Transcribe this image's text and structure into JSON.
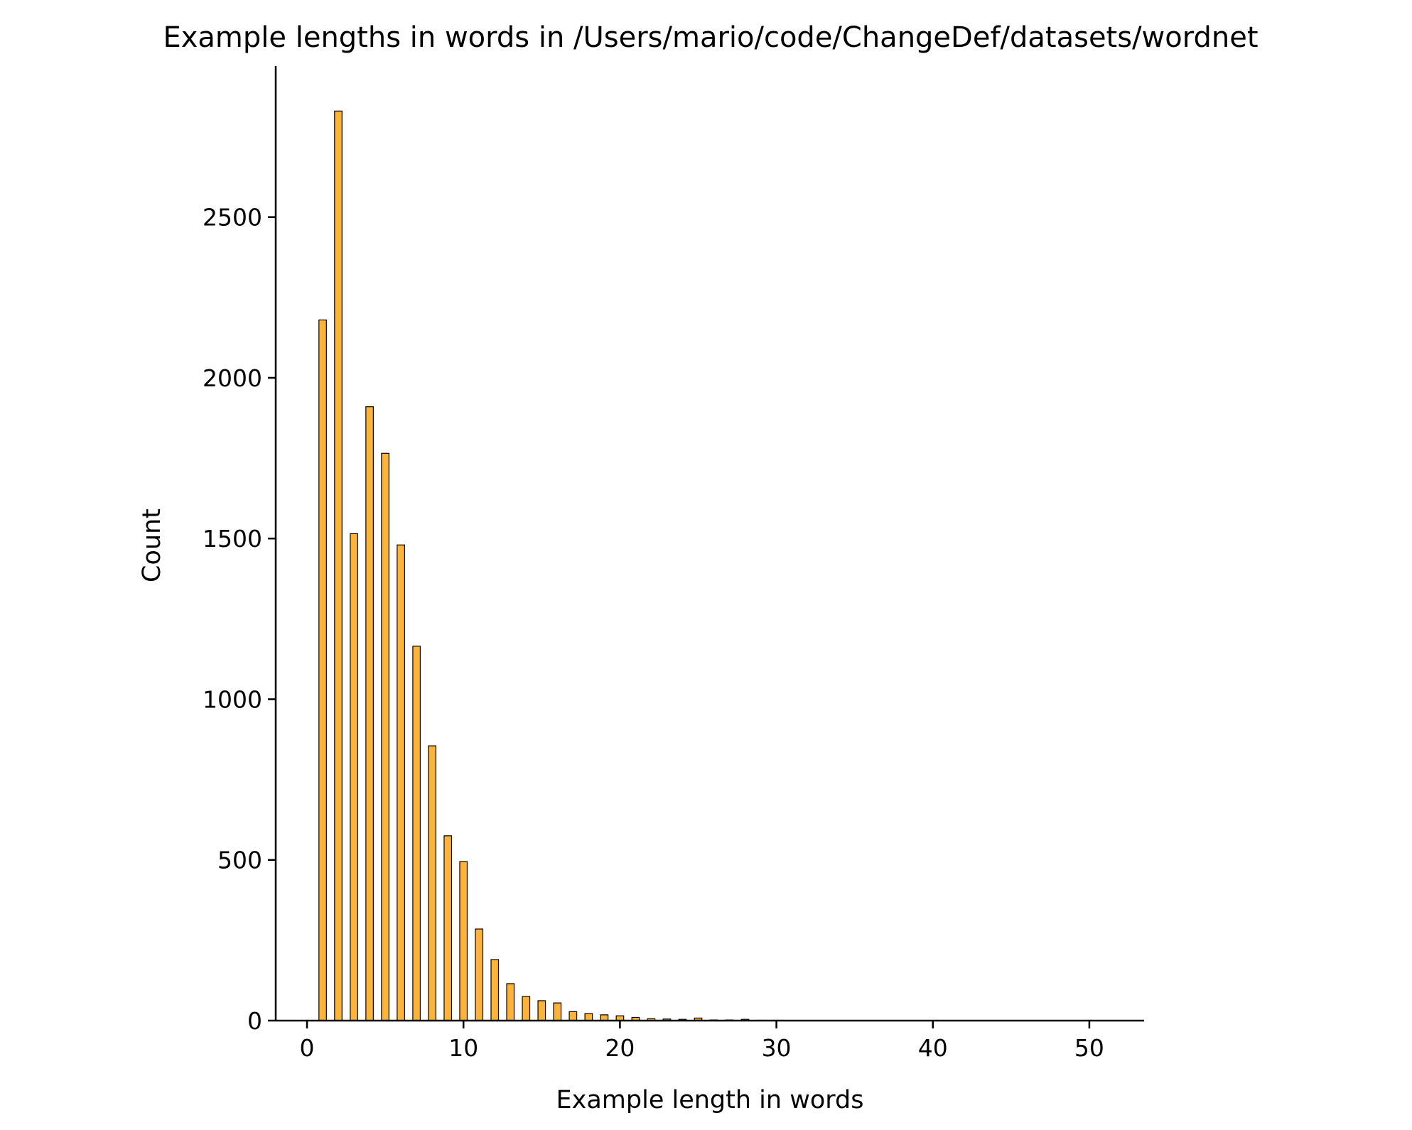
{
  "chart_data": {
    "type": "bar",
    "title": "Example lengths in words in /Users/mario/code/ChangeDef/datasets/wordnet",
    "xlabel": "Example length in words",
    "ylabel": "Count",
    "xlim": [
      -2,
      53.5
    ],
    "ylim": [
      0,
      2970
    ],
    "xticks": [
      0,
      10,
      20,
      30,
      40,
      50
    ],
    "yticks": [
      0,
      500,
      1000,
      1500,
      2000,
      2500
    ],
    "bar_color": "#fbb339",
    "edge_color": "#000000",
    "grid": false,
    "legend": "none",
    "bars": [
      {
        "x": 1,
        "value": 2180
      },
      {
        "x": 2,
        "value": 2830
      },
      {
        "x": 3,
        "value": 1515
      },
      {
        "x": 4,
        "value": 1910
      },
      {
        "x": 5,
        "value": 1765
      },
      {
        "x": 6,
        "value": 1480
      },
      {
        "x": 7,
        "value": 1165
      },
      {
        "x": 8,
        "value": 855
      },
      {
        "x": 9,
        "value": 575
      },
      {
        "x": 10,
        "value": 495
      },
      {
        "x": 11,
        "value": 285
      },
      {
        "x": 12,
        "value": 190
      },
      {
        "x": 13,
        "value": 115
      },
      {
        "x": 14,
        "value": 75
      },
      {
        "x": 15,
        "value": 62
      },
      {
        "x": 16,
        "value": 55
      },
      {
        "x": 17,
        "value": 28
      },
      {
        "x": 18,
        "value": 22
      },
      {
        "x": 19,
        "value": 18
      },
      {
        "x": 20,
        "value": 15
      },
      {
        "x": 21,
        "value": 10
      },
      {
        "x": 22,
        "value": 6
      },
      {
        "x": 23,
        "value": 5
      },
      {
        "x": 24,
        "value": 4
      },
      {
        "x": 25,
        "value": 8
      },
      {
        "x": 26,
        "value": 2
      },
      {
        "x": 27,
        "value": 2
      },
      {
        "x": 28,
        "value": 4
      },
      {
        "x": 29,
        "value": 1
      },
      {
        "x": 30,
        "value": 1
      }
    ]
  }
}
